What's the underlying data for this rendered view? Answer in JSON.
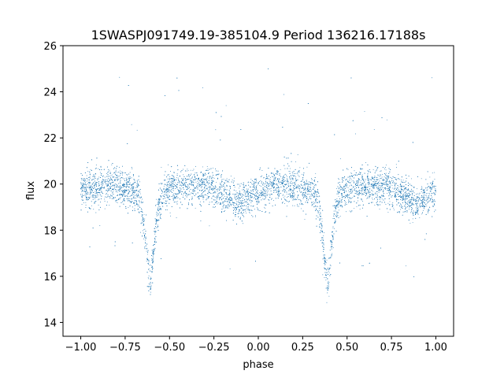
{
  "chart_data": {
    "type": "scatter",
    "title": "1SWASPJ091749.19-385104.9 Period 136216.17188s",
    "xlabel": "phase",
    "ylabel": "flux",
    "xlim": [
      -1.1,
      1.1
    ],
    "ylim": [
      13.4,
      26
    ],
    "x_ticks": [
      -1.0,
      -0.75,
      -0.5,
      -0.25,
      0.0,
      0.25,
      0.5,
      0.75,
      1.0
    ],
    "x_tick_labels": [
      "−1.00",
      "−0.75",
      "−0.50",
      "−0.25",
      "0.00",
      "0.25",
      "0.50",
      "0.75",
      "1.00"
    ],
    "y_ticks": [
      14,
      16,
      18,
      20,
      22,
      24,
      26
    ],
    "y_tick_labels": [
      "14",
      "16",
      "18",
      "20",
      "22",
      "24",
      "26"
    ],
    "grid": false,
    "marker_color": "#1f77b4",
    "profile": {
      "baseline_flux": 19.8,
      "primary_minima_phase": [
        -0.61,
        0.39
      ],
      "primary_minimum_flux": 15.9,
      "secondary_minima_phase": [
        -0.11,
        0.89
      ],
      "secondary_minimum_flux": 19.35,
      "scatter_sigma": 0.4
    },
    "series": [
      {
        "x": [
          -1.0,
          -0.9,
          -0.8,
          -0.7,
          -0.65,
          -0.62,
          -0.61,
          -0.6,
          -0.57,
          -0.5,
          -0.4,
          -0.3,
          -0.2,
          -0.11,
          0.0,
          0.1,
          0.2,
          0.3,
          0.35,
          0.38,
          0.39,
          0.4,
          0.43,
          0.5,
          0.6,
          0.7,
          0.8,
          0.89,
          1.0
        ],
        "y": [
          19.8,
          19.8,
          19.7,
          19.6,
          17.6,
          16.2,
          15.9,
          16.2,
          17.6,
          19.6,
          19.8,
          19.7,
          19.5,
          19.35,
          19.8,
          19.8,
          19.7,
          19.6,
          17.6,
          16.2,
          15.9,
          16.2,
          17.6,
          19.6,
          19.8,
          19.7,
          19.5,
          19.35,
          19.8
        ]
      }
    ]
  }
}
